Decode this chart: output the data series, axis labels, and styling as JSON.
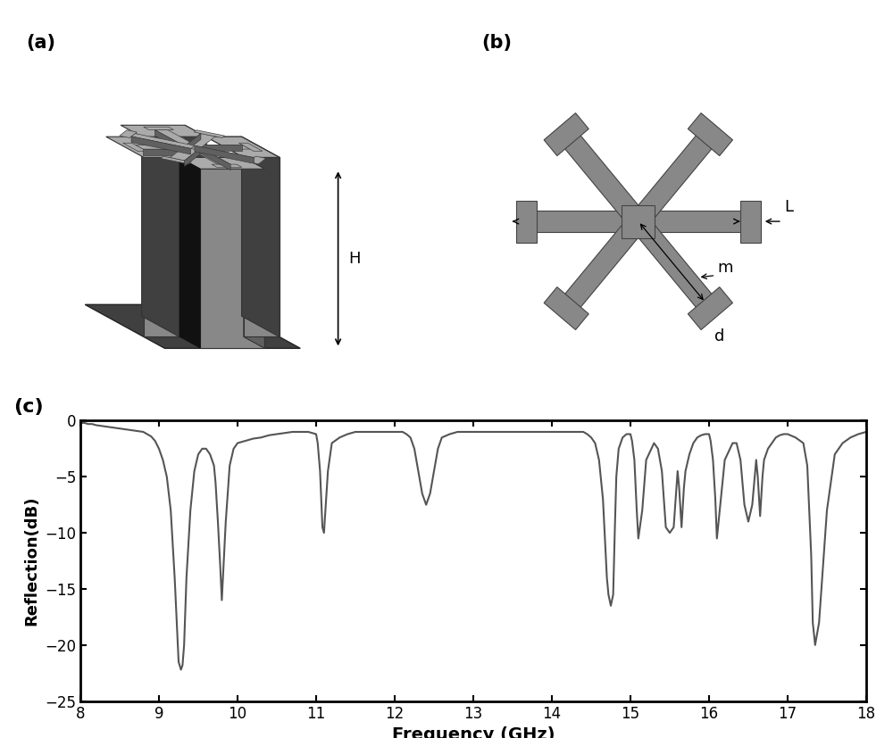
{
  "title_a": "(a)",
  "title_b": "(b)",
  "title_c": "(c)",
  "xlabel": "Frequency (GHz)",
  "ylabel": "Reflection(dB)",
  "xlim": [
    8,
    18
  ],
  "ylim": [
    -25,
    0
  ],
  "xticks": [
    8,
    9,
    10,
    11,
    12,
    13,
    14,
    15,
    16,
    17,
    18
  ],
  "yticks": [
    0,
    -5,
    -10,
    -15,
    -20,
    -25
  ],
  "line_color": "#555555",
  "line_width": 1.5,
  "fig_bg": "#ffffff",
  "label_H": "H",
  "label_L": "L",
  "label_m": "m",
  "label_d": "d",
  "gray_light": "#aaaaaa",
  "gray_mid": "#888888",
  "gray_dark": "#606060",
  "gray_darkest": "#404040",
  "freq": [
    8.0,
    8.05,
    8.1,
    8.15,
    8.2,
    8.3,
    8.4,
    8.5,
    8.6,
    8.7,
    8.8,
    8.85,
    8.9,
    8.95,
    9.0,
    9.05,
    9.1,
    9.15,
    9.2,
    9.25,
    9.28,
    9.3,
    9.32,
    9.35,
    9.4,
    9.45,
    9.5,
    9.55,
    9.6,
    9.65,
    9.7,
    9.72,
    9.75,
    9.78,
    9.8,
    9.85,
    9.9,
    9.95,
    10.0,
    10.1,
    10.2,
    10.3,
    10.4,
    10.5,
    10.6,
    10.7,
    10.8,
    10.9,
    11.0,
    11.02,
    11.05,
    11.08,
    11.1,
    11.15,
    11.2,
    11.3,
    11.4,
    11.5,
    11.6,
    11.7,
    11.8,
    11.9,
    12.0,
    12.1,
    12.15,
    12.2,
    12.25,
    12.3,
    12.35,
    12.4,
    12.45,
    12.5,
    12.55,
    12.6,
    12.7,
    12.8,
    12.9,
    13.0,
    13.1,
    13.2,
    13.3,
    13.4,
    13.5,
    13.6,
    13.7,
    13.8,
    13.9,
    14.0,
    14.1,
    14.2,
    14.3,
    14.4,
    14.45,
    14.5,
    14.55,
    14.6,
    14.65,
    14.7,
    14.72,
    14.75,
    14.78,
    14.8,
    14.82,
    14.85,
    14.9,
    14.95,
    15.0,
    15.02,
    15.05,
    15.08,
    15.1,
    15.15,
    15.2,
    15.3,
    15.35,
    15.4,
    15.45,
    15.5,
    15.55,
    15.6,
    15.62,
    15.65,
    15.68,
    15.7,
    15.75,
    15.8,
    15.85,
    15.9,
    15.95,
    16.0,
    16.02,
    16.05,
    16.08,
    16.1,
    16.15,
    16.2,
    16.3,
    16.35,
    16.4,
    16.45,
    16.5,
    16.55,
    16.6,
    16.62,
    16.65,
    16.68,
    16.7,
    16.75,
    16.8,
    16.85,
    16.9,
    16.95,
    17.0,
    17.1,
    17.2,
    17.25,
    17.3,
    17.32,
    17.35,
    17.4,
    17.5,
    17.6,
    17.7,
    17.8,
    17.9,
    18.0
  ],
  "refl": [
    -0.2,
    -0.2,
    -0.3,
    -0.3,
    -0.4,
    -0.5,
    -0.6,
    -0.7,
    -0.8,
    -0.9,
    -1.0,
    -1.2,
    -1.4,
    -1.8,
    -2.5,
    -3.5,
    -5.0,
    -8.0,
    -14.0,
    -21.5,
    -22.2,
    -21.8,
    -20.0,
    -14.0,
    -8.0,
    -4.5,
    -3.0,
    -2.5,
    -2.5,
    -3.0,
    -4.0,
    -5.5,
    -9.0,
    -13.0,
    -16.0,
    -9.0,
    -4.0,
    -2.5,
    -2.0,
    -1.8,
    -1.6,
    -1.5,
    -1.3,
    -1.2,
    -1.1,
    -1.0,
    -1.0,
    -1.0,
    -1.2,
    -2.0,
    -4.5,
    -9.5,
    -10.0,
    -4.5,
    -2.0,
    -1.5,
    -1.2,
    -1.0,
    -1.0,
    -1.0,
    -1.0,
    -1.0,
    -1.0,
    -1.0,
    -1.2,
    -1.5,
    -2.5,
    -4.5,
    -6.5,
    -7.5,
    -6.5,
    -4.5,
    -2.5,
    -1.5,
    -1.2,
    -1.0,
    -1.0,
    -1.0,
    -1.0,
    -1.0,
    -1.0,
    -1.0,
    -1.0,
    -1.0,
    -1.0,
    -1.0,
    -1.0,
    -1.0,
    -1.0,
    -1.0,
    -1.0,
    -1.0,
    -1.2,
    -1.5,
    -2.0,
    -3.5,
    -7.0,
    -14.0,
    -15.5,
    -16.5,
    -15.5,
    -10.0,
    -5.0,
    -2.5,
    -1.5,
    -1.2,
    -1.2,
    -1.8,
    -3.5,
    -8.0,
    -10.5,
    -8.0,
    -3.5,
    -2.0,
    -2.5,
    -4.5,
    -9.5,
    -10.0,
    -9.5,
    -4.5,
    -6.0,
    -9.5,
    -6.0,
    -4.5,
    -3.0,
    -2.0,
    -1.5,
    -1.3,
    -1.2,
    -1.2,
    -1.8,
    -3.5,
    -7.0,
    -10.5,
    -7.0,
    -3.5,
    -2.0,
    -2.0,
    -3.5,
    -7.5,
    -9.0,
    -7.5,
    -3.5,
    -5.0,
    -8.5,
    -5.0,
    -3.5,
    -2.5,
    -2.0,
    -1.5,
    -1.3,
    -1.2,
    -1.2,
    -1.5,
    -2.0,
    -4.0,
    -12.0,
    -18.0,
    -20.0,
    -18.0,
    -8.0,
    -3.0,
    -2.0,
    -1.5,
    -1.2,
    -1.0
  ]
}
